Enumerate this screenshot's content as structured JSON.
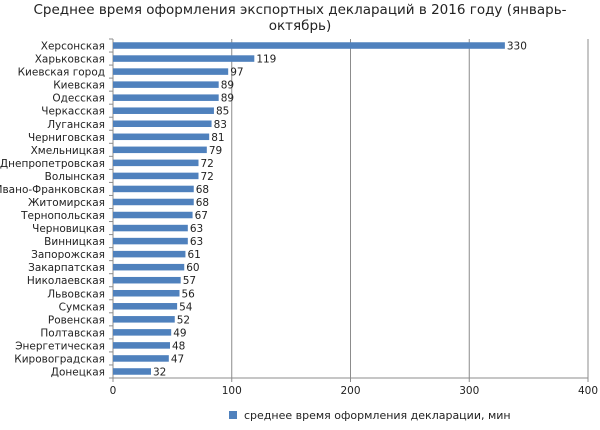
{
  "chart_data": {
    "type": "bar",
    "orientation": "horizontal",
    "title_line1": "Среднее время оформления экспортных деклараций  в  2016 году (январь-",
    "title_line2": "октябрь)",
    "categories": [
      "Херсонская",
      "Харьковская",
      "Киевская город",
      "Киевская",
      "Одесская",
      "Черкасская",
      "Луганская",
      "Черниговская",
      "Хмельницкая",
      "Днепропетровская",
      "Волынская",
      "Ивано-Франковская",
      "Житомирская",
      "Тернопольская",
      "Черновицкая",
      "Винницкая",
      "Запорожская",
      "Закарпатская",
      "Николаевская",
      "Львовская",
      "Сумская",
      "Ровенская",
      "Полтавская",
      "Энергетическая",
      "Кировоградская",
      "Донецкая"
    ],
    "series": [
      {
        "name": "среднее время оформления декларации, мин",
        "values": [
          330,
          119,
          97,
          89,
          89,
          85,
          83,
          81,
          79,
          72,
          72,
          68,
          68,
          67,
          63,
          63,
          61,
          60,
          57,
          56,
          54,
          52,
          49,
          48,
          47,
          32
        ]
      }
    ],
    "xticks": [
      "0",
      "100",
      "200",
      "300",
      "400"
    ],
    "xlim": [
      0,
      400
    ],
    "grid": true,
    "legend_position": "bottom",
    "bar_color": "#4f81bd"
  }
}
